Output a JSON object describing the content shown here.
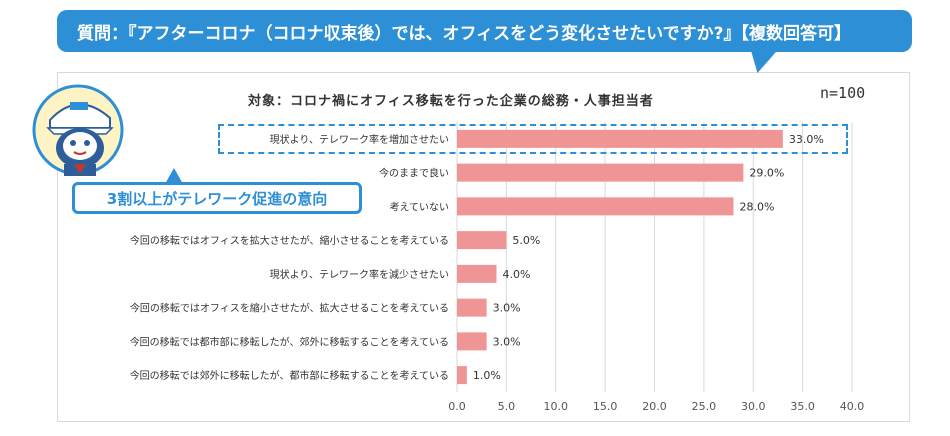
{
  "header": {
    "question": "質問：『アフターコロナ（コロナ収束後）では、オフィスをどう変化させたいですか?』【複数回答可】"
  },
  "subtitle": "対象：コロナ禍にオフィス移転を行った企業の総務・人事担当者",
  "sample_size": "n=100",
  "callout": {
    "text": "3割以上がテレワーク促進の意向"
  },
  "colors": {
    "bar": "#f09595",
    "accent": "#2d8fd5",
    "grid": "#d9d9d9"
  },
  "icons": {
    "mascot": "mascot-icon"
  },
  "chart_data": {
    "type": "bar",
    "orientation": "horizontal",
    "categories": [
      "現状より、テレワーク率を増加させたい",
      "今のままで良い",
      "考えていない",
      "今回の移転ではオフィスを拡大させたが、縮小させることを考えている",
      "現状より、テレワーク率を減少させたい",
      "今回の移転ではオフィスを縮小させたが、拡大させることを考えている",
      "今回の移転では都市部に移転したが、郊外に移転することを考えている",
      "今回の移転では郊外に移転したが、都市部に移転することを考えている"
    ],
    "values": [
      33.0,
      29.0,
      28.0,
      5.0,
      4.0,
      3.0,
      3.0,
      1.0
    ],
    "value_labels": [
      "33.0%",
      "29.0%",
      "28.0%",
      "5.0%",
      "4.0%",
      "3.0%",
      "3.0%",
      "1.0%"
    ],
    "xlim": [
      0,
      40
    ],
    "ticks": [
      "0.0",
      "5.0",
      "10.0",
      "15.0",
      "20.0",
      "25.0",
      "30.0",
      "35.0",
      "40.0"
    ],
    "grid": true
  }
}
